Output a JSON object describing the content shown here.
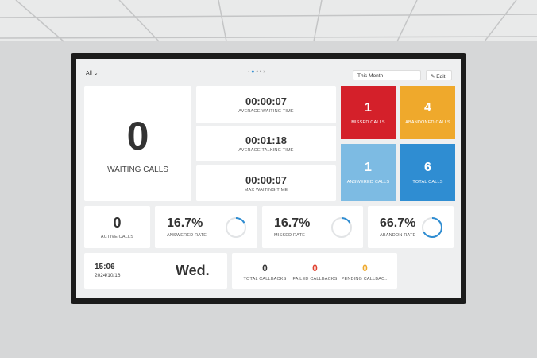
{
  "top_bar": {
    "filter": "All",
    "period": "This Month",
    "edit": "Edit"
  },
  "waiting": {
    "value": "0",
    "label": "WAITING CALLS"
  },
  "times": [
    {
      "value": "00:00:07",
      "label": "AVERAGE WAITING TIME"
    },
    {
      "value": "00:01:18",
      "label": "AVERAGE TALKING TIME"
    },
    {
      "value": "00:00:07",
      "label": "MAX WAITING TIME"
    }
  ],
  "tiles": [
    {
      "value": "1",
      "label": "MISSED CALLS",
      "color": "#d4202a"
    },
    {
      "value": "4",
      "label": "ABANDONED CALLS",
      "color": "#efa92c"
    },
    {
      "value": "1",
      "label": "ANSWERED CALLS",
      "color": "#7dbbe3"
    },
    {
      "value": "6",
      "label": "TOTAL CALLS",
      "color": "#2f8dd2"
    }
  ],
  "active_calls": {
    "value": "0",
    "label": "ACTIVE CALLS"
  },
  "rates": [
    {
      "value": 16.7,
      "value_label": "16.7%",
      "label": "ANSWERED RATE"
    },
    {
      "value": 16.7,
      "value_label": "16.7%",
      "label": "MISSED RATE"
    },
    {
      "value": 66.7,
      "value_label": "66.7%",
      "label": "ABANDON RATE"
    }
  ],
  "clock": {
    "time": "15:06",
    "date": "2024/10/16",
    "weekday": "Wed."
  },
  "callbacks": [
    {
      "value": "0",
      "label": "TOTAL CALLBACKS",
      "color": "#333333"
    },
    {
      "value": "0",
      "label": "FAILED CALLBACKS",
      "color": "#e0412f"
    },
    {
      "value": "0",
      "label": "PENDING CALLBAC...",
      "color": "#efa92c"
    }
  ]
}
